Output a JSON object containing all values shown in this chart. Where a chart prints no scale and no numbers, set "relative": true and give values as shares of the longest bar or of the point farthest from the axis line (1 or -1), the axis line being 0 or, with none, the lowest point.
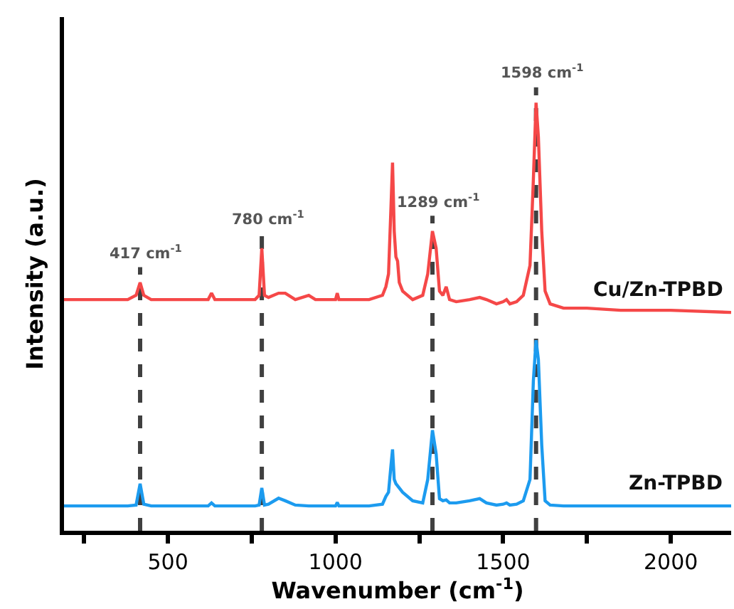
{
  "chart_data": {
    "type": "line",
    "relative": true,
    "xlabel": "Wavenumber (cm$^{-1}$)",
    "ylabel": "Intensity (a.u.)",
    "xlim": [
      190,
      2180
    ],
    "xticks": [
      {
        "value": 250,
        "label": null
      },
      500,
      {
        "value": 750,
        "label": null
      },
      1000,
      {
        "value": 1250,
        "label": null
      },
      1500,
      {
        "value": 1750,
        "label": null
      },
      2000
    ],
    "tick_labels": "x",
    "grid": false,
    "legend": false,
    "marker": "none",
    "line_style": "solid",
    "x": [
      190,
      300,
      380,
      405,
      417,
      428,
      450,
      550,
      600,
      620,
      630,
      640,
      700,
      760,
      772,
      780,
      788,
      800,
      830,
      850,
      880,
      920,
      940,
      1000,
      1005,
      1010,
      1050,
      1100,
      1140,
      1150,
      1158,
      1165,
      1170,
      1175,
      1180,
      1185,
      1190,
      1200,
      1230,
      1260,
      1275,
      1289,
      1300,
      1310,
      1320,
      1330,
      1340,
      1360,
      1400,
      1430,
      1450,
      1480,
      1500,
      1510,
      1520,
      1540,
      1560,
      1580,
      1590,
      1598,
      1605,
      1615,
      1625,
      1640,
      1680,
      1750,
      1850,
      2000,
      2180
    ],
    "series": [
      {
        "name": "Cu/Zn-TPBD",
        "color": "#f54848",
        "values": [
          0.54,
          0.54,
          0.54,
          0.55,
          0.58,
          0.55,
          0.54,
          0.54,
          0.54,
          0.54,
          0.555,
          0.54,
          0.54,
          0.54,
          0.55,
          0.66,
          0.55,
          0.545,
          0.555,
          0.555,
          0.54,
          0.55,
          0.54,
          0.54,
          0.555,
          0.54,
          0.54,
          0.54,
          0.55,
          0.57,
          0.6,
          0.75,
          0.86,
          0.7,
          0.64,
          0.63,
          0.58,
          0.56,
          0.54,
          0.55,
          0.6,
          0.7,
          0.66,
          0.56,
          0.55,
          0.57,
          0.54,
          0.535,
          0.54,
          0.545,
          0.54,
          0.53,
          0.535,
          0.54,
          0.53,
          0.535,
          0.55,
          0.62,
          0.82,
          1.0,
          0.92,
          0.7,
          0.56,
          0.53,
          0.52,
          0.52,
          0.515,
          0.515,
          0.51
        ]
      },
      {
        "name": "Zn-TPBD",
        "color": "#1c9bef",
        "values": [
          0.058,
          0.058,
          0.058,
          0.06,
          0.11,
          0.062,
          0.058,
          0.058,
          0.058,
          0.058,
          0.065,
          0.058,
          0.058,
          0.058,
          0.06,
          0.1,
          0.06,
          0.062,
          0.076,
          0.07,
          0.06,
          0.058,
          0.058,
          0.058,
          0.066,
          0.058,
          0.058,
          0.058,
          0.062,
          0.08,
          0.09,
          0.15,
          0.19,
          0.12,
          0.11,
          0.105,
          0.1,
          0.09,
          0.07,
          0.065,
          0.12,
          0.235,
          0.18,
          0.075,
          0.07,
          0.072,
          0.065,
          0.065,
          0.07,
          0.075,
          0.065,
          0.06,
          0.062,
          0.065,
          0.06,
          0.062,
          0.07,
          0.12,
          0.35,
          0.445,
          0.4,
          0.2,
          0.07,
          0.06,
          0.058,
          0.058,
          0.058,
          0.058,
          0.058
        ]
      }
    ],
    "ref_lines": [
      {
        "axis": "x",
        "value": 417,
        "color": "#404040",
        "line_style": "dashed",
        "label": "417 cm$^{-1}$"
      },
      {
        "axis": "x",
        "value": 780,
        "color": "#404040",
        "line_style": "dashed",
        "label": "780 cm$^{-1}$"
      },
      {
        "axis": "x",
        "value": 1289,
        "color": "#404040",
        "line_style": "dashed",
        "label": "1289 cm$^{-1}$"
      },
      {
        "axis": "x",
        "value": 1598,
        "color": "#404040",
        "line_style": "dashed",
        "label": "1598 cm$^{-1}$"
      }
    ]
  }
}
